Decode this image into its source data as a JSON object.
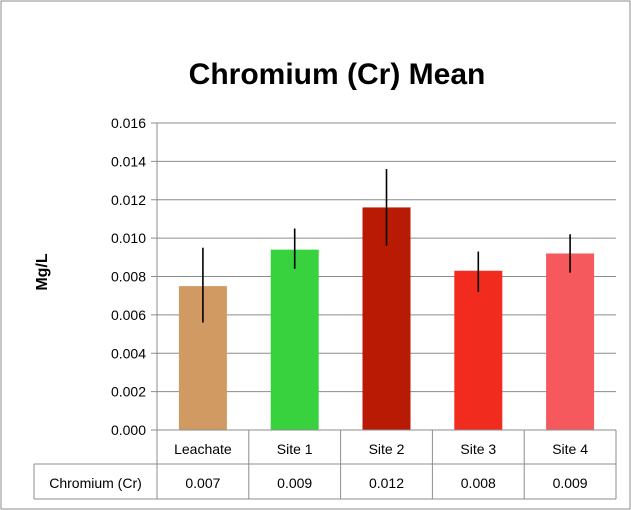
{
  "chart_data": {
    "type": "bar",
    "title": "Chromium (Cr) Mean",
    "xlabel": "",
    "ylabel": "Mg/L",
    "ylim": [
      0,
      0.016
    ],
    "y_ticks": [
      "0.000",
      "0.002",
      "0.004",
      "0.006",
      "0.008",
      "0.010",
      "0.012",
      "0.014",
      "0.016"
    ],
    "grid": true,
    "legend": "none",
    "categories": [
      "Leachate",
      "Site 1",
      "Site 2",
      "Site 3",
      "Site 4"
    ],
    "series": [
      {
        "values": [
          0.0075,
          0.0094,
          0.0116,
          0.0083,
          0.0092
        ],
        "error_low": [
          0.0056,
          0.0084,
          0.0096,
          0.0072,
          0.0082
        ],
        "error_high": [
          0.0095,
          0.0105,
          0.0136,
          0.0093,
          0.0102
        ],
        "colors": [
          "#d09a62",
          "#37d23d",
          "#b81a04",
          "#f22b1f",
          "#f5595e"
        ]
      }
    ],
    "data_table": {
      "row_label": "Chromium (Cr)",
      "values": [
        "0.007",
        "0.009",
        "0.012",
        "0.008",
        "0.009"
      ]
    }
  }
}
